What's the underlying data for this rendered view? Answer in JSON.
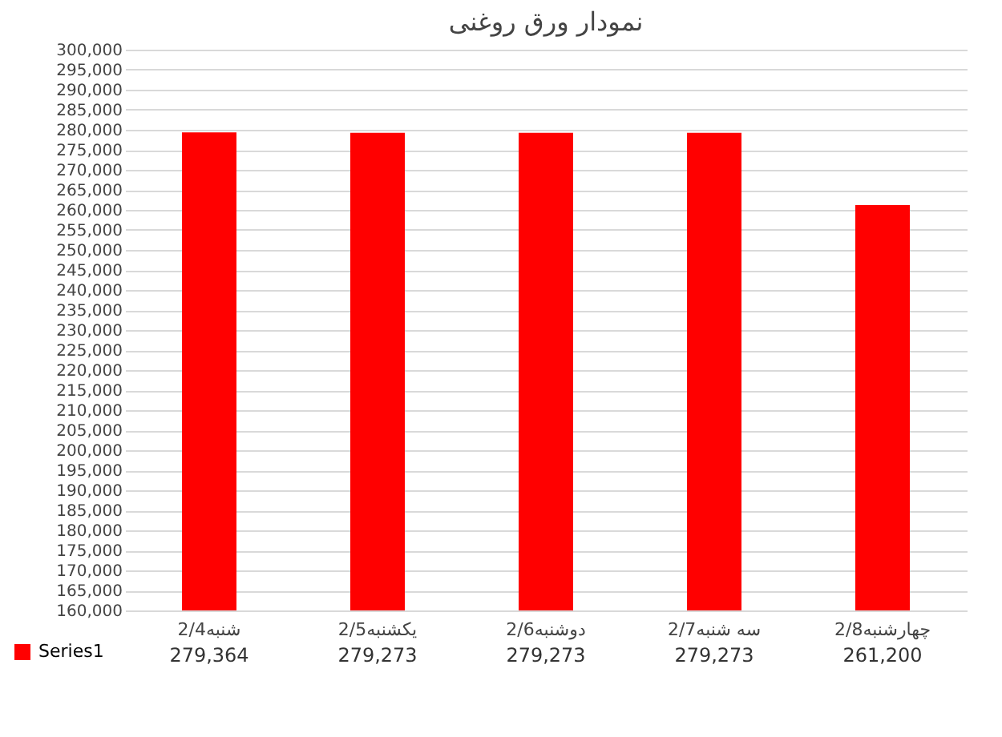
{
  "chart_data": {
    "type": "bar",
    "title": "نمودار ورق روغنی",
    "categories": [
      "شنبه2/4",
      "یکشنبه2/5",
      "دوشنبه2/6",
      "سه شنبه2/7",
      "چهارشنبه2/8"
    ],
    "series": [
      {
        "name": "Series1",
        "color": "#ff0000",
        "values": [
          279364,
          279273,
          279273,
          279273,
          261200
        ]
      }
    ],
    "ylim": [
      160000,
      300000
    ],
    "yticks": [
      {
        "value": 160000,
        "label": "160,000"
      },
      {
        "value": 165000,
        "label": "165,000"
      },
      {
        "value": 170000,
        "label": "170,000"
      },
      {
        "value": 175000,
        "label": "175,000"
      },
      {
        "value": 180000,
        "label": "180,000"
      },
      {
        "value": 185000,
        "label": "185,000"
      },
      {
        "value": 190000,
        "label": "190,000"
      },
      {
        "value": 195000,
        "label": "195,000"
      },
      {
        "value": 200000,
        "label": "200,000"
      },
      {
        "value": 205000,
        "label": "205,000"
      },
      {
        "value": 210000,
        "label": "210,000"
      },
      {
        "value": 215000,
        "label": "215,000"
      },
      {
        "value": 220000,
        "label": "220,000"
      },
      {
        "value": 225000,
        "label": "225,000"
      },
      {
        "value": 230000,
        "label": "230,000"
      },
      {
        "value": 235000,
        "label": "235,000"
      },
      {
        "value": 240000,
        "label": "240,000"
      },
      {
        "value": 245000,
        "label": "245,000"
      },
      {
        "value": 250000,
        "label": "250,000"
      },
      {
        "value": 255000,
        "label": "255,000"
      },
      {
        "value": 260000,
        "label": "260,000"
      },
      {
        "value": 265000,
        "label": "265,000"
      },
      {
        "value": 270000,
        "label": "270,000"
      },
      {
        "value": 275000,
        "label": "275,000"
      },
      {
        "value": 280000,
        "label": "280,000"
      },
      {
        "value": 285000,
        "label": "285,000"
      },
      {
        "value": 290000,
        "label": "290,000"
      },
      {
        "value": 295000,
        "label": "295,000"
      },
      {
        "value": 300000,
        "label": "300,000"
      }
    ],
    "value_labels": [
      "279,364",
      "279,273",
      "279,273",
      "279,273",
      "261,200"
    ],
    "grid": "y",
    "legend": "bottom left"
  }
}
